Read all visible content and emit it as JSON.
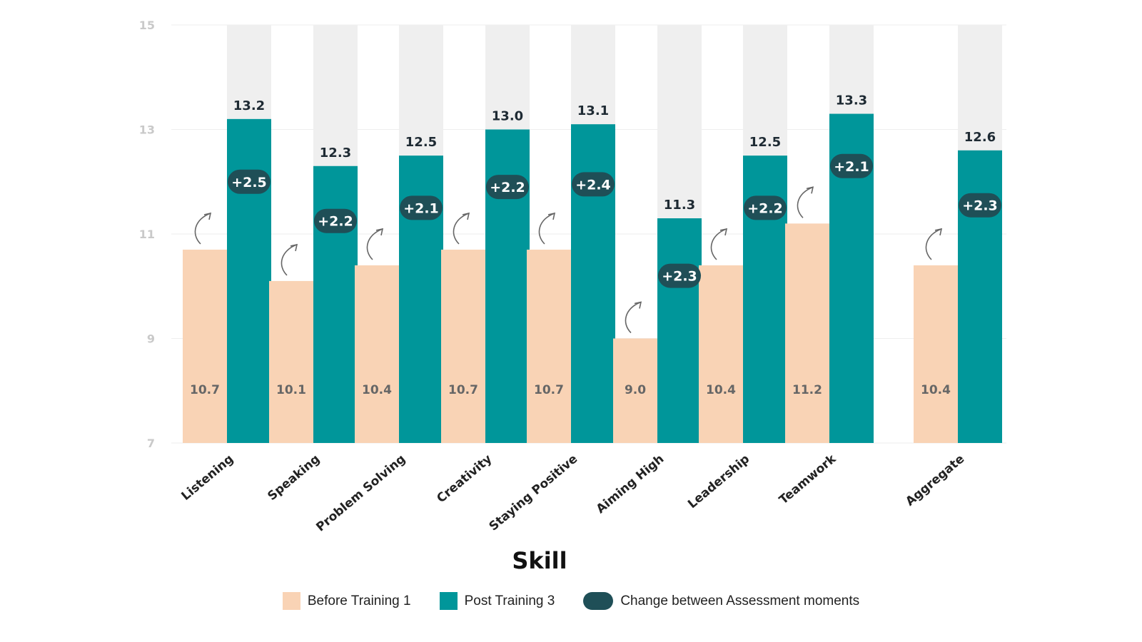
{
  "chart_data": {
    "type": "bar",
    "title": "",
    "xlabel": "Skill",
    "ylabel": "",
    "ylim": [
      7,
      15
    ],
    "yticks": [
      7,
      9,
      11,
      13,
      15
    ],
    "categories": [
      "Listening",
      "Speaking",
      "Problem Solving",
      "Creativity",
      "Staying Positive",
      "Aiming High",
      "Leadership",
      "Teamwork",
      "Aggregate"
    ],
    "series": [
      {
        "name": "Before Training 1",
        "color": "#f9d3b5",
        "values": [
          10.7,
          10.1,
          10.4,
          10.7,
          10.7,
          9.0,
          10.4,
          11.2,
          10.4
        ],
        "labels": [
          "10.7",
          "10.1",
          "10.4",
          "10.7",
          "10.7",
          "9.0",
          "10.4",
          "11.2",
          "10.4"
        ]
      },
      {
        "name": "Post Training 3",
        "color": "#00969a",
        "values": [
          13.2,
          12.3,
          12.5,
          13.0,
          13.1,
          11.3,
          12.5,
          13.3,
          12.6
        ],
        "labels": [
          "13.2",
          "12.3",
          "12.5",
          "13.0",
          "13.1",
          "11.3",
          "12.5",
          "13.3",
          "12.6"
        ]
      }
    ],
    "change": {
      "name": "Change between Assessment moments",
      "color": "#1f4f57",
      "labels": [
        "+2.5",
        "+2.2",
        "+2.1",
        "+2.2",
        "+2.4",
        "+2.3",
        "+2.2",
        "+2.1",
        "+2.3"
      ]
    },
    "background_column_color": "#efefef",
    "grid": true,
    "legend_position": "bottom"
  }
}
